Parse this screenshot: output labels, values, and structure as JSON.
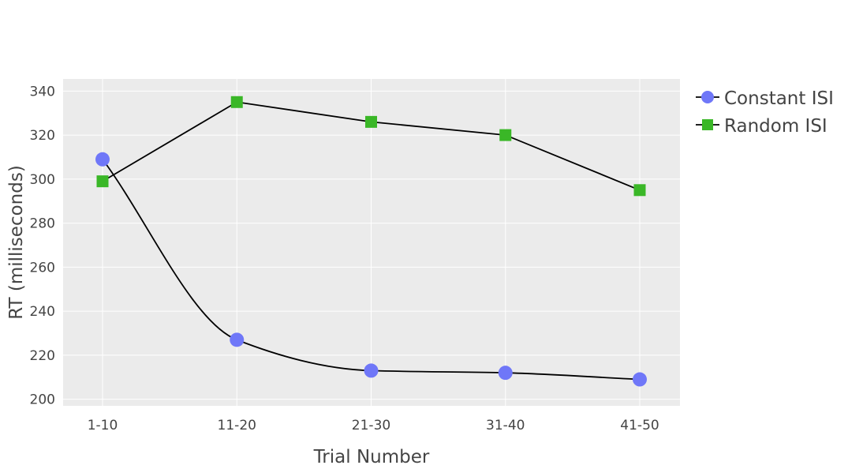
{
  "chart_data": {
    "type": "line",
    "title": "",
    "xlabel": "Trial Number",
    "ylabel": "RT (milliseconds)",
    "categories": [
      "1-10",
      "11-20",
      "21-30",
      "31-40",
      "41-50"
    ],
    "yticks": [
      200,
      220,
      240,
      260,
      280,
      300,
      320,
      340
    ],
    "ylim": [
      197,
      345.5
    ],
    "grid": true,
    "legend_position": "top-right",
    "background_color": "#ebebeb",
    "grid_color": "#ffffff",
    "line_color": "#000000",
    "series": [
      {
        "name": "Constant ISI",
        "marker": "circle",
        "color": "#6f77f8",
        "shape": "spline",
        "values": [
          309,
          227,
          213,
          212,
          209
        ]
      },
      {
        "name": "Random ISI",
        "marker": "square",
        "color": "#3ab727",
        "shape": "linear",
        "values": [
          299,
          335,
          326,
          320,
          295
        ]
      }
    ]
  }
}
